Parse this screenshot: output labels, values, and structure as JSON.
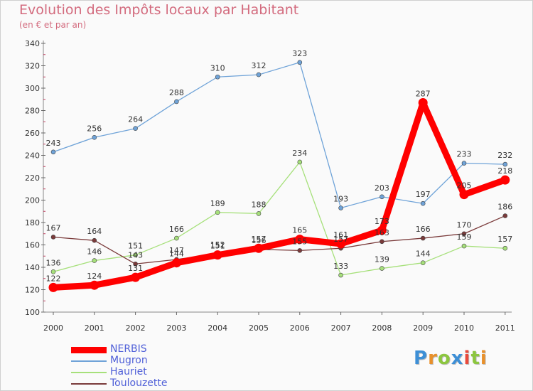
{
  "header": {
    "title": "Evolution des Impôts locaux par Habitant",
    "subtitle": "(en € et par an)"
  },
  "brand": {
    "letters": [
      "P",
      "r",
      "o",
      "x",
      "i",
      "t",
      "i"
    ],
    "colors": [
      "#3d8fd6",
      "#e8902a",
      "#8cc63f",
      "#3d8fd6",
      "#e94a3c",
      "#8cc63f",
      "#e8902a"
    ]
  },
  "chart_data": {
    "type": "line",
    "title": "Evolution des Impôts locaux par Habitant",
    "subtitle": "(en € et par an)",
    "xlabel": "",
    "ylabel": "",
    "ylim": [
      100,
      340
    ],
    "yticks": [
      100,
      120,
      140,
      160,
      180,
      200,
      220,
      240,
      260,
      280,
      300,
      320,
      340
    ],
    "categories": [
      "2000",
      "2001",
      "2002",
      "2003",
      "2004",
      "2005",
      "2006",
      "2007",
      "2008",
      "2009",
      "2010",
      "2011"
    ],
    "grid": false,
    "legend_position": "bottom-left",
    "series": [
      {
        "name": "NERBIS",
        "color": "#ff0000",
        "values": [
          122,
          124,
          131,
          144,
          151,
          157,
          165,
          161,
          173,
          287,
          205,
          218
        ],
        "labels": [
          "122",
          "124",
          "131",
          "144",
          "151",
          "157",
          "165",
          "161",
          "173",
          "287",
          "205",
          "218"
        ]
      },
      {
        "name": "Mugron",
        "color": "#6fa3d8",
        "values": [
          243,
          256,
          264,
          288,
          310,
          312,
          323,
          193,
          203,
          197,
          233,
          232
        ],
        "labels": [
          "243",
          "256",
          "264",
          "288",
          "310",
          "312",
          "323",
          "193",
          "203",
          "197",
          "233",
          "232"
        ]
      },
      {
        "name": "Hauriet",
        "color": "#a6e07a",
        "values": [
          136,
          146,
          151,
          166,
          189,
          188,
          234,
          133,
          139,
          144,
          159,
          157
        ],
        "labels": [
          "136",
          "146",
          "151",
          "166",
          "189",
          "188",
          "234",
          "133",
          "139",
          "144",
          "159",
          "157"
        ]
      },
      {
        "name": "Toulouzette",
        "color": "#7a3a3a",
        "values": [
          167,
          164,
          143,
          147,
          152,
          156,
          155,
          157,
          163,
          166,
          170,
          186
        ],
        "labels": [
          "167",
          "164",
          "143",
          "147",
          "152",
          "156",
          "155",
          "157",
          "163",
          "166",
          "170",
          "186"
        ]
      }
    ]
  }
}
